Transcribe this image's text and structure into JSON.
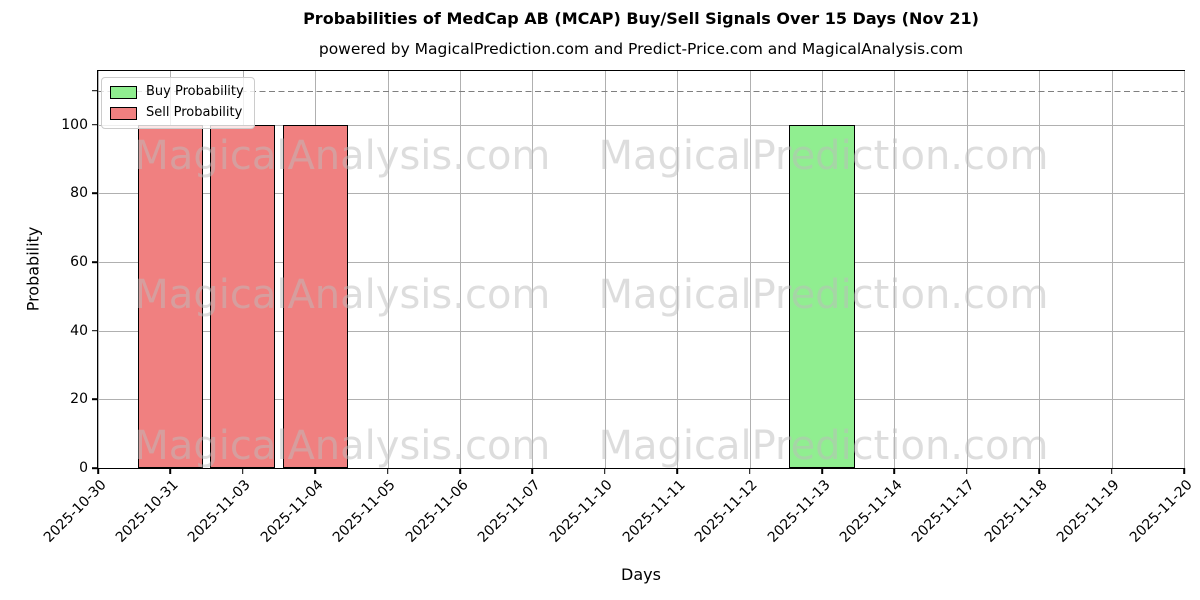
{
  "figure": {
    "title": "Probabilities of MedCap AB (MCAP) Buy/Sell Signals Over 15 Days (Nov 21)",
    "subtitle": "powered by MagicalPrediction.com and Predict-Price.com and MagicalAnalysis.com"
  },
  "legend": {
    "items": [
      {
        "label": "Buy Probability",
        "color": "#90EE90"
      },
      {
        "label": "Sell Probability",
        "color": "#F08080"
      }
    ]
  },
  "watermarks": {
    "left_text": "MagicalAnalysis.com",
    "right_text": "MagicalPrediction.com"
  },
  "chart_data": {
    "type": "bar",
    "title": "Probabilities of MedCap AB (MCAP) Buy/Sell Signals Over 15 Days (Nov 21)",
    "subtitle": "powered by MagicalPrediction.com and Predict-Price.com and MagicalAnalysis.com",
    "xlabel": "Days",
    "ylabel": "Probability",
    "categories": [
      "2025-10-30",
      "2025-10-31",
      "2025-11-03",
      "2025-11-04",
      "2025-11-05",
      "2025-11-06",
      "2025-11-07",
      "2025-11-10",
      "2025-11-11",
      "2025-11-12",
      "2025-11-13",
      "2025-11-14",
      "2025-11-17",
      "2025-11-18",
      "2025-11-19",
      "2025-11-20"
    ],
    "series": [
      {
        "name": "Buy Probability",
        "color": "#90EE90",
        "values": [
          0,
          0,
          0,
          0,
          0,
          0,
          0,
          0,
          0,
          0,
          100,
          0,
          0,
          0,
          0,
          0
        ]
      },
      {
        "name": "Sell Probability",
        "color": "#F08080",
        "values": [
          0,
          100,
          100,
          100,
          0,
          0,
          0,
          0,
          0,
          0,
          0,
          0,
          0,
          0,
          0,
          0
        ]
      }
    ],
    "ylim": [
      0,
      115.7
    ],
    "yticks": [
      0,
      20,
      40,
      60,
      80,
      100
    ],
    "unlabeled_ytick": 110,
    "threshold_line": {
      "y": 110,
      "style": "dashed",
      "color": "#7f7f7f"
    },
    "grid": true,
    "grid_color": "#b0b0b0",
    "bar_width_fraction": 0.9,
    "bar_edge_color": "#000000",
    "legend_position": "upper left"
  }
}
